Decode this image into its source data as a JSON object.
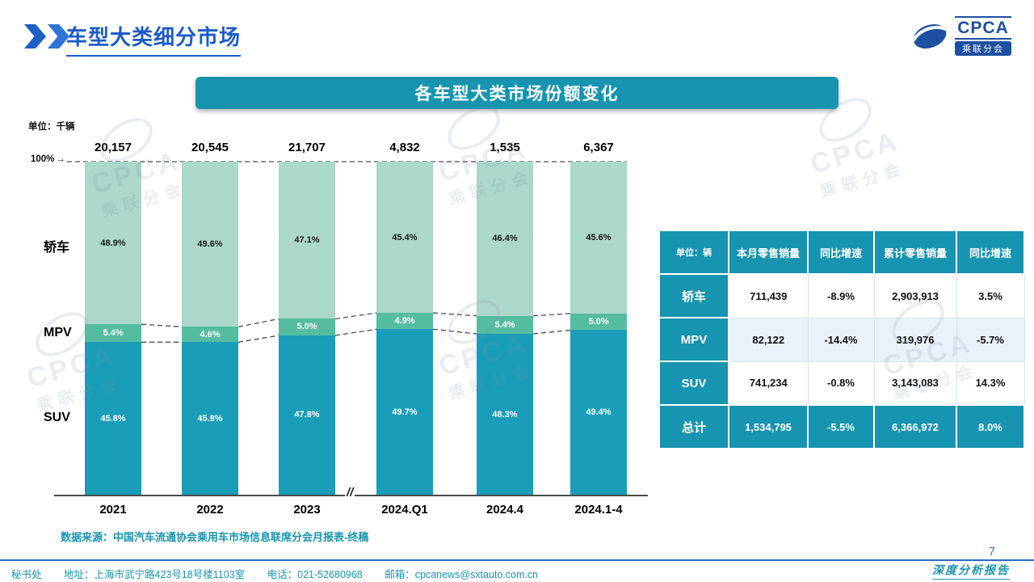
{
  "page": {
    "title": "车型大类细分市场",
    "banner": "各车型大类市场份额变化",
    "unit_label": "单位：千辆",
    "axis_max_label": "100%",
    "source": "数据来源：中国汽车流通协会乘用车市场信息联席分会月报表-终稿",
    "page_number": "7",
    "report_label": "深度分析报告"
  },
  "logo": {
    "text": "CPCA",
    "subtext": "乘联分会"
  },
  "watermark": {
    "text": "CPCA",
    "subtext": "乘联分会"
  },
  "chart_data": {
    "type": "bar",
    "stacked": true,
    "title": "各车型大类市场份额变化",
    "unit": "千辆",
    "ylim": [
      0,
      100
    ],
    "grid": false,
    "legend_position": "left-row-labels",
    "categories": [
      "2021",
      "2022",
      "2023",
      "2024.Q1",
      "2024.4",
      "2024.1-4"
    ],
    "totals": [
      "20,157",
      "20,545",
      "21,707",
      "4,832",
      "1,535",
      "6,367"
    ],
    "series": [
      {
        "name": "SUV",
        "color": "#1A9DB8",
        "values": [
          45.8,
          45.8,
          47.8,
          49.7,
          48.3,
          49.4
        ]
      },
      {
        "name": "MPV",
        "color": "#55BD9F",
        "values": [
          5.4,
          4.6,
          5.0,
          4.9,
          5.4,
          5.0
        ]
      },
      {
        "name": "轿车",
        "color": "#ACD7CB",
        "values": [
          48.9,
          49.6,
          47.1,
          45.4,
          46.4,
          45.6
        ]
      }
    ],
    "row_labels": [
      "轿车",
      "MPV",
      "SUV"
    ],
    "axis_break_between": [
      "2023",
      "2024.Q1"
    ],
    "axis_break_symbol": "//"
  },
  "table": {
    "headers": [
      "单位：辆",
      "本月零售销量",
      "同比增速",
      "累计零售销量",
      "同比增速"
    ],
    "rows": [
      {
        "label": "轿车",
        "cells": [
          "711,439",
          "-8.9%",
          "2,903,913",
          "3.5%"
        ],
        "highlight": false
      },
      {
        "label": "MPV",
        "cells": [
          "82,122",
          "-14.4%",
          "319,976",
          "-5.7%"
        ],
        "highlight": false
      },
      {
        "label": "SUV",
        "cells": [
          "741,234",
          "-0.8%",
          "3,143,083",
          "14.3%"
        ],
        "highlight": false
      },
      {
        "label": "总计",
        "cells": [
          "1,534,795",
          "-5.5%",
          "6,366,972",
          "8.0%"
        ],
        "highlight": true
      }
    ]
  },
  "footer": {
    "secretariat": "秘书处",
    "address": "地址：上海市武宁路423号18号楼1103室",
    "phone": "电话：021-52680968",
    "email": "邮箱：cpcanews@sxtauto.com.cn"
  }
}
